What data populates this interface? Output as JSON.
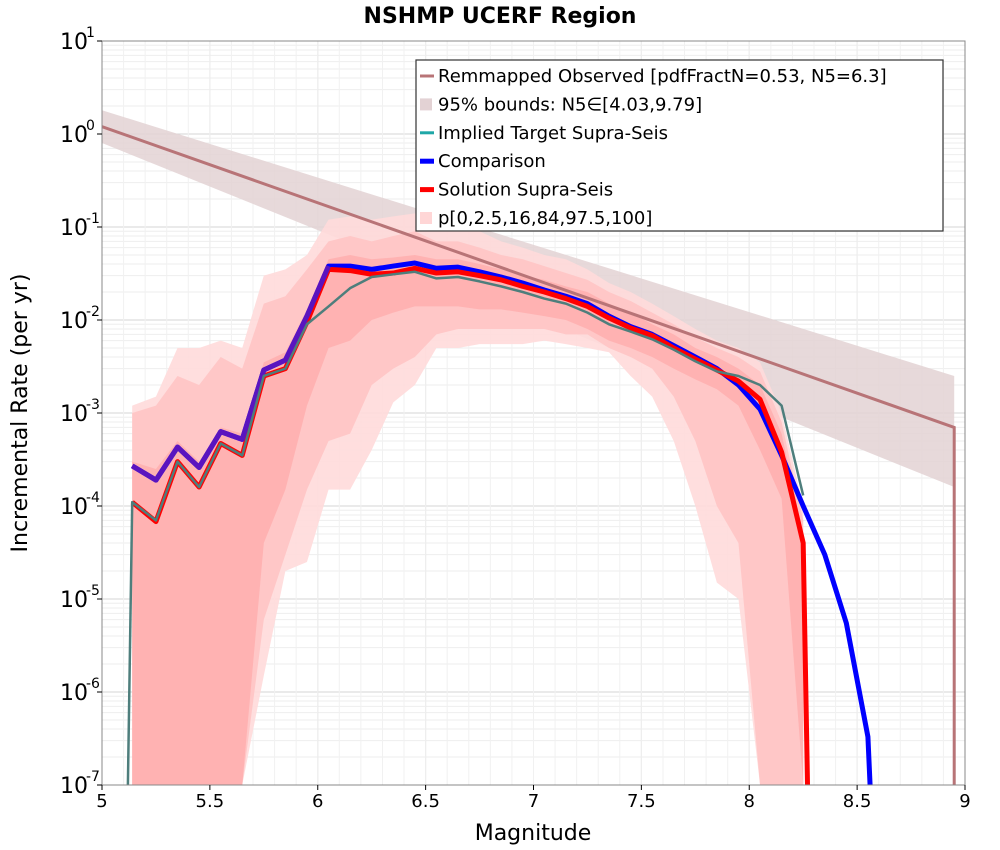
{
  "chart_data": {
    "type": "line",
    "title": "NSHMP UCERF Region",
    "xlabel": "Magnitude",
    "ylabel": "Incremental Rate (per yr)",
    "xlim": [
      5,
      9
    ],
    "ylim": [
      1e-07,
      10
    ],
    "yscale": "log",
    "grid": true,
    "legend_placement": "top-right",
    "x_ticks": [
      "5",
      "5.5",
      "6",
      "6.5",
      "7",
      "7.5",
      "8",
      "8.5",
      "9"
    ],
    "y_ticks": [
      {
        "base": "10",
        "exp": "-7",
        "value": 1e-07
      },
      {
        "base": "10",
        "exp": "-6",
        "value": 1e-06
      },
      {
        "base": "10",
        "exp": "-5",
        "value": 1e-05
      },
      {
        "base": "10",
        "exp": "-4",
        "value": 0.0001
      },
      {
        "base": "10",
        "exp": "-3",
        "value": 0.001
      },
      {
        "base": "10",
        "exp": "-2",
        "value": 0.01
      },
      {
        "base": "10",
        "exp": "-1",
        "value": 0.1
      },
      {
        "base": "10",
        "exp": "0",
        "value": 1
      },
      {
        "base": "10",
        "exp": "1",
        "value": 10
      }
    ],
    "legend": [
      {
        "label": "Remmapped Observed [pdfFractN=0.53, N5=6.3]",
        "color": "#b87477",
        "kind": "line"
      },
      {
        "label": "95% bounds: N5∈[4.03,9.79]",
        "color": "#e3d2d4",
        "kind": "band"
      },
      {
        "label": "Implied Target Supra-Seis",
        "color": "#1fa7a7",
        "kind": "line"
      },
      {
        "label": "Comparison",
        "color": "#0000ff",
        "kind": "thickline"
      },
      {
        "label": "Solution Supra-Seis",
        "color": "#ff0000",
        "kind": "thickline"
      },
      {
        "label": "p[0,2.5,16,84,97.5,100]",
        "color": "#ffd6d6",
        "kind": "band"
      }
    ],
    "colors": {
      "observed": "#b87477",
      "observed_band": "#e3d2d4",
      "target": "#4e7e7c",
      "comparison": "#0000ff",
      "solution": "#ff0000",
      "outer_band": "#ffdada",
      "mid_band": "#ffc4c4",
      "inner_band": "#ffb1b1",
      "overlap": "#5a14bf"
    },
    "series": [
      {
        "name": "Remmapped Observed [pdfFractN=0.53, N5=6.3]",
        "x": [
          5.0,
          8.95,
          8.95
        ],
        "y": [
          1.2,
          0.0007,
          1e-07
        ]
      },
      {
        "name": "95% bounds: N5∈[4.03,9.79]",
        "x": [
          5.0,
          8.95
        ],
        "upper": [
          1.8,
          0.0025
        ],
        "lower": [
          0.8,
          0.00016
        ]
      },
      {
        "name": "Implied Target Supra-Seis",
        "x": [
          5.12,
          5.14,
          5.25,
          5.35,
          5.45,
          5.55,
          5.65,
          5.75,
          5.85,
          5.95,
          6.05,
          6.15,
          6.25,
          6.35,
          6.45,
          6.55,
          6.65,
          6.75,
          6.85,
          6.95,
          7.05,
          7.15,
          7.25,
          7.35,
          7.45,
          7.55,
          7.65,
          7.75,
          7.85,
          7.95,
          8.05,
          8.15,
          8.25
        ],
        "y": [
          1e-07,
          0.00011,
          7e-05,
          0.0003,
          0.00016,
          0.00047,
          0.00035,
          0.0025,
          0.003,
          0.009,
          0.014,
          0.022,
          0.029,
          0.031,
          0.033,
          0.028,
          0.029,
          0.026,
          0.023,
          0.02,
          0.017,
          0.015,
          0.012,
          0.009,
          0.0075,
          0.0062,
          0.0048,
          0.0036,
          0.0028,
          0.0025,
          0.002,
          0.0012,
          0.00013
        ]
      },
      {
        "name": "Comparison",
        "x": [
          5.14,
          5.25,
          5.35,
          5.45,
          5.55,
          5.65,
          5.75,
          5.85,
          5.95,
          6.05,
          6.15,
          6.25,
          6.35,
          6.45,
          6.55,
          6.65,
          6.75,
          6.85,
          6.95,
          7.05,
          7.15,
          7.25,
          7.35,
          7.45,
          7.55,
          7.65,
          7.75,
          7.85,
          7.95,
          8.05,
          8.15,
          8.25,
          8.35,
          8.45,
          8.55,
          8.56
        ],
        "y": [
          0.00027,
          0.00019,
          0.00043,
          0.00026,
          0.00063,
          0.00052,
          0.0029,
          0.0037,
          0.011,
          0.038,
          0.038,
          0.035,
          0.038,
          0.041,
          0.036,
          0.037,
          0.033,
          0.029,
          0.025,
          0.021,
          0.018,
          0.015,
          0.011,
          0.0085,
          0.007,
          0.0053,
          0.004,
          0.003,
          0.002,
          0.0011,
          0.00035,
          0.0001,
          3e-05,
          5.5e-06,
          3.3e-07,
          1e-07
        ]
      },
      {
        "name": "Solution Supra-Seis",
        "x": [
          5.14,
          5.25,
          5.35,
          5.45,
          5.55,
          5.65,
          5.75,
          5.85,
          5.95,
          6.05,
          6.15,
          6.25,
          6.35,
          6.45,
          6.55,
          6.65,
          6.75,
          6.85,
          6.95,
          7.05,
          7.15,
          7.25,
          7.35,
          7.45,
          7.55,
          7.65,
          7.75,
          7.85,
          7.95,
          8.05,
          8.15,
          8.25,
          8.27
        ],
        "y": [
          0.00011,
          6.8e-05,
          0.0003,
          0.00016,
          0.00047,
          0.00035,
          0.0025,
          0.003,
          0.0095,
          0.035,
          0.034,
          0.031,
          0.032,
          0.036,
          0.032,
          0.033,
          0.03,
          0.027,
          0.023,
          0.02,
          0.017,
          0.014,
          0.0105,
          0.0082,
          0.0068,
          0.005,
          0.0038,
          0.0029,
          0.0022,
          0.0014,
          0.00038,
          4e-05,
          1e-07
        ]
      },
      {
        "name": "p[0,2.5,16,84,97.5,100]",
        "x": [
          5.14,
          5.25,
          5.35,
          5.45,
          5.55,
          5.65,
          5.75,
          5.85,
          5.95,
          6.05,
          6.15,
          6.25,
          6.35,
          6.45,
          6.55,
          6.65,
          6.75,
          6.85,
          6.95,
          7.05,
          7.15,
          7.25,
          7.35,
          7.45,
          7.55,
          7.65,
          7.75,
          7.85,
          7.95,
          8.05,
          8.15,
          8.25
        ],
        "p0": [
          1e-07,
          1e-07,
          1e-07,
          1e-07,
          1e-07,
          1e-07,
          1.5e-06,
          2e-05,
          2.5e-05,
          0.00015,
          0.00015,
          0.0004,
          0.0013,
          0.002,
          0.005,
          0.005,
          0.0055,
          0.0055,
          0.0055,
          0.006,
          0.0055,
          0.005,
          0.0045,
          0.0025,
          0.0015,
          0.0005,
          0.0001,
          1.5e-05,
          1e-05,
          1e-07,
          1e-07,
          1e-07
        ],
        "p2_5": [
          1e-07,
          1e-07,
          1e-07,
          1e-07,
          1e-07,
          1e-07,
          6e-06,
          3e-05,
          0.00015,
          0.0005,
          0.0006,
          0.002,
          0.003,
          0.004,
          0.007,
          0.008,
          0.008,
          0.008,
          0.008,
          0.008,
          0.007,
          0.007,
          0.005,
          0.004,
          0.003,
          0.0015,
          0.0005,
          0.0001,
          4e-05,
          1e-07,
          1e-07,
          1e-07
        ],
        "p16": [
          1e-07,
          1e-07,
          1e-07,
          1e-07,
          1e-07,
          1e-07,
          4e-05,
          0.00015,
          0.0012,
          0.005,
          0.006,
          0.01,
          0.012,
          0.014,
          0.014,
          0.014,
          0.013,
          0.013,
          0.012,
          0.011,
          0.01,
          0.008,
          0.006,
          0.005,
          0.004,
          0.003,
          0.0023,
          0.0018,
          0.0012,
          0.0004,
          0.00012,
          1e-07
        ],
        "p84": [
          0.0003,
          0.00025,
          0.0005,
          0.0003,
          0.0007,
          0.0006,
          0.0035,
          0.0045,
          0.013,
          0.045,
          0.05,
          0.045,
          0.047,
          0.05,
          0.045,
          0.045,
          0.04,
          0.035,
          0.03,
          0.027,
          0.023,
          0.02,
          0.015,
          0.012,
          0.009,
          0.007,
          0.005,
          0.004,
          0.003,
          0.002,
          0.0006,
          5e-05
        ],
        "p97_5": [
          0.001,
          0.0012,
          0.0025,
          0.002,
          0.004,
          0.003,
          0.015,
          0.018,
          0.035,
          0.07,
          0.08,
          0.07,
          0.08,
          0.09,
          0.07,
          0.07,
          0.06,
          0.05,
          0.045,
          0.038,
          0.032,
          0.027,
          0.02,
          0.016,
          0.012,
          0.009,
          0.0065,
          0.005,
          0.004,
          0.0028,
          0.0008,
          7e-05
        ],
        "p100": [
          0.0012,
          0.0015,
          0.005,
          0.005,
          0.006,
          0.005,
          0.03,
          0.035,
          0.05,
          0.12,
          0.13,
          0.12,
          0.13,
          0.14,
          0.12,
          0.11,
          0.09,
          0.07,
          0.06,
          0.05,
          0.045,
          0.035,
          0.025,
          0.02,
          0.015,
          0.011,
          0.008,
          0.006,
          0.005,
          0.0035,
          0.001,
          0.0001
        ]
      }
    ]
  }
}
